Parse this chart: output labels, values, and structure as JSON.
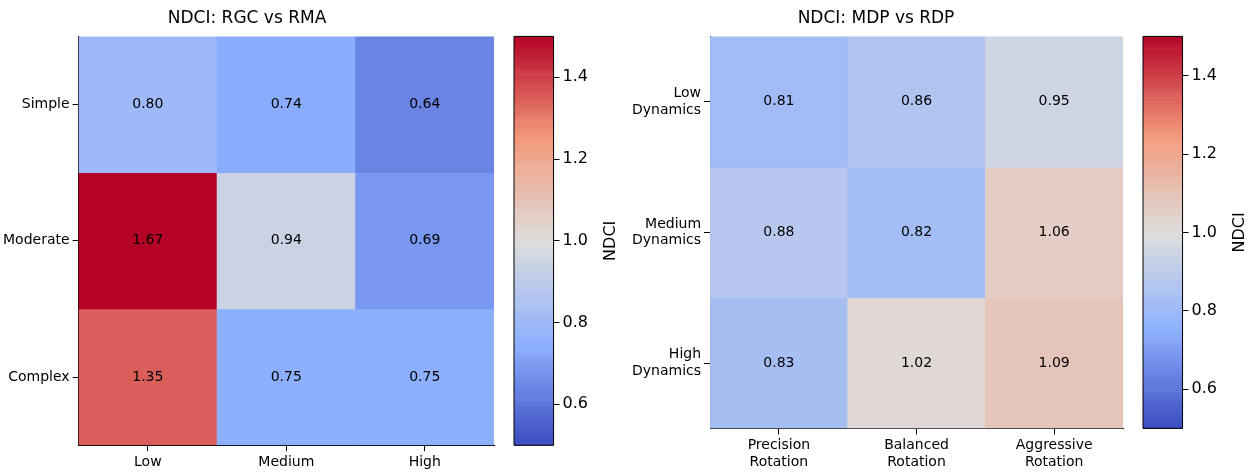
{
  "chart_data": [
    {
      "type": "heatmap",
      "title": "NDCI: RGC vs RMA",
      "categories": [
        "Low",
        "Medium",
        "High"
      ],
      "y_categories": [
        "Simple",
        "Moderate",
        "Complex"
      ],
      "cells": [
        [
          0.8,
          0.74,
          0.64
        ],
        [
          1.67,
          0.94,
          0.69
        ],
        [
          1.35,
          0.75,
          0.75
        ]
      ],
      "cell_labels": [
        [
          "0.80",
          "0.74",
          "0.64"
        ],
        [
          "1.67",
          "0.94",
          "0.69"
        ],
        [
          "1.35",
          "0.75",
          "0.75"
        ]
      ],
      "clabel": "NDCI",
      "clim": [
        0.5,
        1.5
      ],
      "cticks": [
        0.6,
        0.8,
        {
          "value": 1,
          "label": "1.0"
        },
        1.2,
        1.4
      ]
    },
    {
      "type": "heatmap",
      "title": "NDCI: MDP vs RDP",
      "categories": [
        "Precision Rotation",
        "Balanced Rotation",
        "Aggressive Rotation"
      ],
      "y_categories": [
        "Low Dynamics",
        "Medium Dynamics",
        "High Dynamics"
      ],
      "cells": [
        [
          0.81,
          0.86,
          0.95
        ],
        [
          0.88,
          0.82,
          1.06
        ],
        [
          0.83,
          1.02,
          1.09
        ]
      ],
      "cell_labels": [
        [
          "0.81",
          "0.86",
          "0.95"
        ],
        [
          "0.88",
          "0.82",
          "1.06"
        ],
        [
          "0.83",
          "1.02",
          "1.09"
        ]
      ],
      "clabel": "NDCI",
      "clim": [
        0.5,
        1.5
      ],
      "cticks": [
        0.6,
        0.8,
        {
          "value": 1,
          "label": "1.0"
        },
        1.2,
        1.4
      ]
    }
  ]
}
